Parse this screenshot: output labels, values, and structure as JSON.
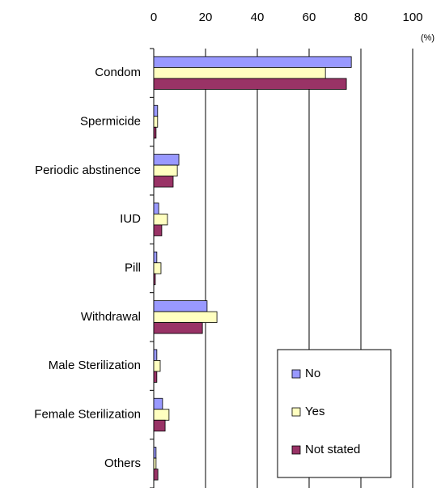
{
  "chart_data": {
    "type": "hbar",
    "unit_label": "(%)",
    "categories": [
      "Condom",
      "Spermicide",
      "Periodic abstinence",
      "IUD",
      "Pill",
      "Withdrawal",
      "Male Sterilization",
      "Female Sterilization",
      "Others"
    ],
    "series": [
      {
        "name": "No",
        "color": "#9999ff",
        "values": [
          76.3,
          1.5,
          9.7,
          1.9,
          1.2,
          20.6,
          1.2,
          3.4,
          0.9
        ]
      },
      {
        "name": "Yes",
        "color": "#ffffc0",
        "values": [
          66.3,
          1.5,
          9.1,
          5.3,
          2.8,
          24.4,
          2.5,
          5.9,
          0.9
        ]
      },
      {
        "name": "Not stated",
        "color": "#993366",
        "values": [
          74.4,
          0.9,
          7.5,
          3.1,
          0.6,
          18.8,
          1.2,
          4.4,
          1.6
        ]
      }
    ],
    "xlim": [
      0,
      100
    ],
    "xticks": [
      0,
      20,
      40,
      60,
      80,
      100
    ],
    "grid": true,
    "legend": "lower right"
  }
}
